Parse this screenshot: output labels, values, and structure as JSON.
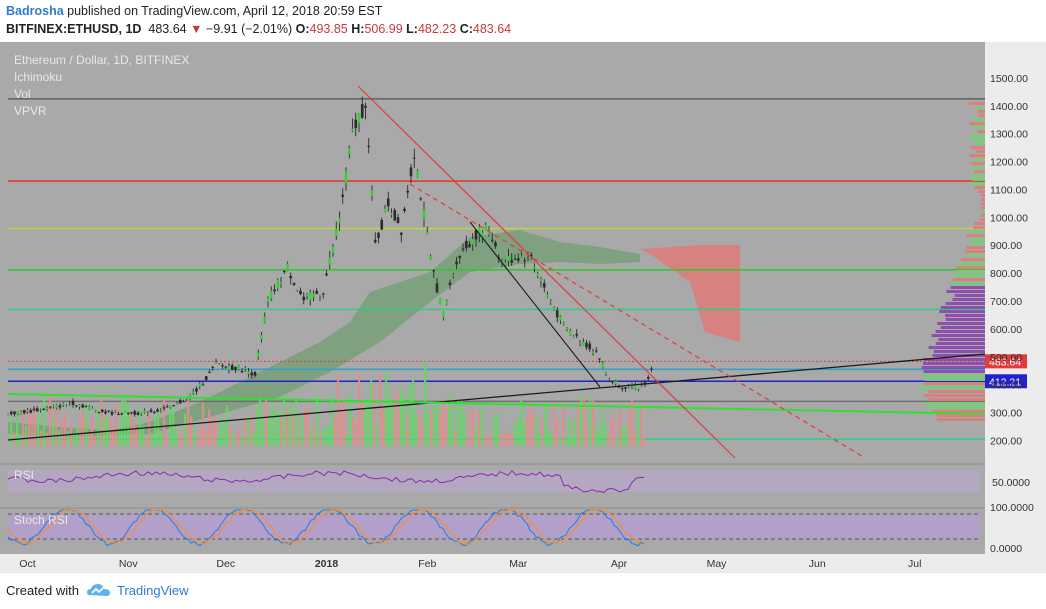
{
  "header": {
    "author": "Badrosha",
    "published_text": " published on TradingView.com, April 12, 2018 20:59 EST",
    "symbol": "BITFINEX:ETHUSD, 1D",
    "last": "483.64",
    "change": "−9.91 (−2.01%)",
    "o_label": "O:",
    "o": "493.85",
    "h_label": "H:",
    "h": "506.99",
    "l_label": "L:",
    "l": "482.23",
    "c_label": "C:",
    "c": "483.64"
  },
  "legend": {
    "title": "Ethereum / Dollar, 1D, BITFINEX",
    "indicators": [
      "Ichimoku",
      "Vol",
      "VPVR"
    ],
    "rsi": "RSI",
    "stoch": "Stoch RSI"
  },
  "colors": {
    "bg": "#a8a8a8",
    "axis_bg": "#e7e7e7",
    "up": "#5dce5d",
    "down": "#e07a7a",
    "red_line": "#e23b3b",
    "blue_line": "#2323c9"
  },
  "chart_data": {
    "type": "candlestick",
    "title": "Ethereum / Dollar, 1D, BITFINEX",
    "price_axis": {
      "ticks": [
        "1500.00",
        "1400.00",
        "1300.00",
        "1200.00",
        "1100.00",
        "1000.00",
        "900.00",
        "800.00",
        "700.00",
        "600.00",
        "500.00",
        "400.00",
        "300.00",
        "200.00"
      ],
      "ylim": [
        180,
        1550
      ]
    },
    "x_axis": {
      "ticks": [
        "Oct",
        "Nov",
        "Dec",
        "2018",
        "Feb",
        "Mar",
        "Apr",
        "May",
        "Jun",
        "Jul"
      ]
    },
    "price_labels": [
      {
        "text": "483.64",
        "color": "#e23b3b"
      },
      {
        "text": "412.21",
        "color": "#2323c9"
      }
    ],
    "horizontal_levels": [
      {
        "value": 1425,
        "color": "#666666"
      },
      {
        "value": 1130,
        "color": "#e23b3b"
      },
      {
        "value": 960,
        "color": "#b5d93a"
      },
      {
        "value": 812,
        "color": "#32c832"
      },
      {
        "value": 670,
        "color": "#2ecc88"
      },
      {
        "value": 483.64,
        "color": "#e23b3b"
      },
      {
        "value": 455,
        "color": "#3aa0c8"
      },
      {
        "value": 412.21,
        "color": "#2323c9"
      },
      {
        "value": 340,
        "color": "#707070"
      },
      {
        "value": 205,
        "color": "#2ecc88"
      }
    ],
    "price_path": [
      {
        "d": "2017-09-25",
        "v": 295
      },
      {
        "d": "2017-10-05",
        "v": 310
      },
      {
        "d": "2017-10-15",
        "v": 335
      },
      {
        "d": "2017-10-25",
        "v": 300
      },
      {
        "d": "2017-11-05",
        "v": 298
      },
      {
        "d": "2017-11-15",
        "v": 320
      },
      {
        "d": "2017-11-22",
        "v": 380
      },
      {
        "d": "2017-11-28",
        "v": 470
      },
      {
        "d": "2017-12-05",
        "v": 460
      },
      {
        "d": "2017-12-10",
        "v": 440
      },
      {
        "d": "2017-12-14",
        "v": 700
      },
      {
        "d": "2017-12-20",
        "v": 820
      },
      {
        "d": "2017-12-25",
        "v": 700
      },
      {
        "d": "2017-12-31",
        "v": 740
      },
      {
        "d": "2018-01-05",
        "v": 1000
      },
      {
        "d": "2018-01-09",
        "v": 1300
      },
      {
        "d": "2018-01-13",
        "v": 1420
      },
      {
        "d": "2018-01-16",
        "v": 900
      },
      {
        "d": "2018-01-20",
        "v": 1050
      },
      {
        "d": "2018-01-24",
        "v": 960
      },
      {
        "d": "2018-01-28",
        "v": 1240
      },
      {
        "d": "2018-02-02",
        "v": 850
      },
      {
        "d": "2018-02-06",
        "v": 650
      },
      {
        "d": "2018-02-10",
        "v": 850
      },
      {
        "d": "2018-02-16",
        "v": 940
      },
      {
        "d": "2018-02-20",
        "v": 960
      },
      {
        "d": "2018-02-24",
        "v": 840
      },
      {
        "d": "2018-03-01",
        "v": 860
      },
      {
        "d": "2018-03-05",
        "v": 860
      },
      {
        "d": "2018-03-10",
        "v": 720
      },
      {
        "d": "2018-03-15",
        "v": 610
      },
      {
        "d": "2018-03-20",
        "v": 560
      },
      {
        "d": "2018-03-25",
        "v": 520
      },
      {
        "d": "2018-03-29",
        "v": 420
      },
      {
        "d": "2018-04-02",
        "v": 395
      },
      {
        "d": "2018-04-07",
        "v": 390
      },
      {
        "d": "2018-04-10",
        "v": 420
      },
      {
        "d": "2018-04-12",
        "v": 483.64
      }
    ],
    "rsi_axis": {
      "ticks": [
        "50.0000"
      ]
    },
    "stoch_axis": {
      "ticks": [
        "100.0000",
        "0.0000"
      ]
    }
  },
  "footer": {
    "created_with": "Created with",
    "brand": "TradingView"
  }
}
